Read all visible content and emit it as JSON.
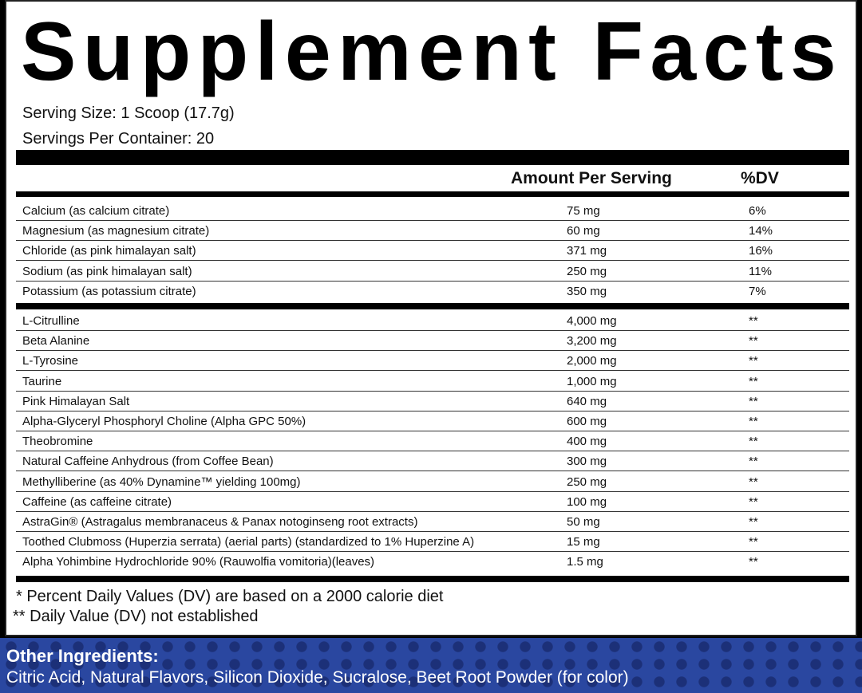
{
  "title": "Supplement Facts",
  "serving_size": "Serving Size: 1 Scoop (17.7g)",
  "servings_per_container": "Servings Per Container: 20",
  "header": {
    "amount": "Amount Per Serving",
    "dv": "%DV"
  },
  "minerals": [
    {
      "name": "Calcium (as calcium citrate)",
      "amount": "75 mg",
      "dv": "6%"
    },
    {
      "name": "Magnesium (as magnesium citrate)",
      "amount": "60 mg",
      "dv": "14%"
    },
    {
      "name": "Chloride (as pink himalayan salt)",
      "amount": "371 mg",
      "dv": "16%"
    },
    {
      "name": "Sodium (as pink himalayan salt)",
      "amount": "250 mg",
      "dv": "11%"
    },
    {
      "name": "Potassium (as potassium citrate)",
      "amount": "350 mg",
      "dv": "7%"
    }
  ],
  "ingredients": [
    {
      "name": "L-Citrulline",
      "amount": "4,000 mg",
      "dv": "**"
    },
    {
      "name": "Beta Alanine",
      "amount": "3,200 mg",
      "dv": "**"
    },
    {
      "name": "L-Tyrosine",
      "amount": "2,000 mg",
      "dv": "**"
    },
    {
      "name": "Taurine",
      "amount": "1,000 mg",
      "dv": "**"
    },
    {
      "name": "Pink Himalayan Salt",
      "amount": "640 mg",
      "dv": "**"
    },
    {
      "name": "Alpha-Glyceryl Phosphoryl Choline (Alpha GPC 50%)",
      "amount": "600 mg",
      "dv": "**"
    },
    {
      "name": "Theobromine",
      "amount": "400 mg",
      "dv": "**"
    },
    {
      "name": "Natural Caffeine Anhydrous (from Coffee Bean)",
      "amount": "300 mg",
      "dv": "**"
    },
    {
      "name": "Methylliberine (as 40% Dynamine™ yielding 100mg)",
      "amount": "250 mg",
      "dv": "**"
    },
    {
      "name": "Caffeine (as caffeine citrate)",
      "amount": "100 mg",
      "dv": "**"
    },
    {
      "name": "AstraGin® (Astragalus membranaceus & Panax notoginseng root extracts)",
      "amount": "50 mg",
      "dv": "**"
    },
    {
      "name": "Toothed Clubmoss (Huperzia serrata) (aerial parts) (standardized to 1% Huperzine A)",
      "amount": "15 mg",
      "dv": "**"
    },
    {
      "name": "Alpha Yohimbine Hydrochloride 90% (Rauwolfia vomitoria)(leaves)",
      "amount": "1.5 mg",
      "dv": "**"
    }
  ],
  "footnotes": [
    "* Percent Daily Values (DV) are based on a 2000 calorie diet",
    "** Daily Value (DV) not established"
  ],
  "other_ingredients": {
    "heading": "Other Ingredients:",
    "text": "Citric Acid, Natural Flavors, Silicon Dioxide, Sucralose, Beet Root Powder (for color)"
  },
  "colors": {
    "band": "#2a47a0"
  }
}
